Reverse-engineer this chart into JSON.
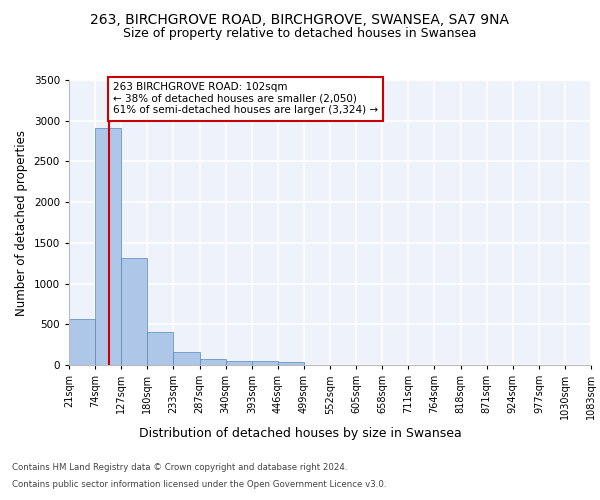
{
  "title_line1": "263, BIRCHGROVE ROAD, BIRCHGROVE, SWANSEA, SA7 9NA",
  "title_line2": "Size of property relative to detached houses in Swansea",
  "xlabel": "Distribution of detached houses by size in Swansea",
  "ylabel": "Number of detached properties",
  "footer_line1": "Contains HM Land Registry data © Crown copyright and database right 2024.",
  "footer_line2": "Contains public sector information licensed under the Open Government Licence v3.0.",
  "bin_edges": [
    21,
    74,
    127,
    180,
    233,
    287,
    340,
    393,
    446,
    499,
    552,
    605,
    658,
    711,
    764,
    818,
    871,
    924,
    977,
    1030,
    1083
  ],
  "bar_heights": [
    570,
    2910,
    1320,
    410,
    155,
    75,
    55,
    45,
    35,
    0,
    0,
    0,
    0,
    0,
    0,
    0,
    0,
    0,
    0,
    0
  ],
  "bar_color": "#aec6e8",
  "bar_edge_color": "#5588bb",
  "subject_size": 102,
  "subject_label": "263 BIRCHGROVE ROAD: 102sqm",
  "annotation_line1": "← 38% of detached houses are smaller (2,050)",
  "annotation_line2": "61% of semi-detached houses are larger (3,324) →",
  "vline_color": "#cc0000",
  "annotation_box_color": "#cc0000",
  "ylim": [
    0,
    3500
  ],
  "yticks": [
    0,
    500,
    1000,
    1500,
    2000,
    2500,
    3000,
    3500
  ],
  "background_color": "#eef2fa",
  "grid_color": "#ffffff",
  "tick_label_fontsize": 7.0,
  "title1_fontsize": 10,
  "title2_fontsize": 9,
  "xlabel_fontsize": 9,
  "ylabel_fontsize": 8.5
}
